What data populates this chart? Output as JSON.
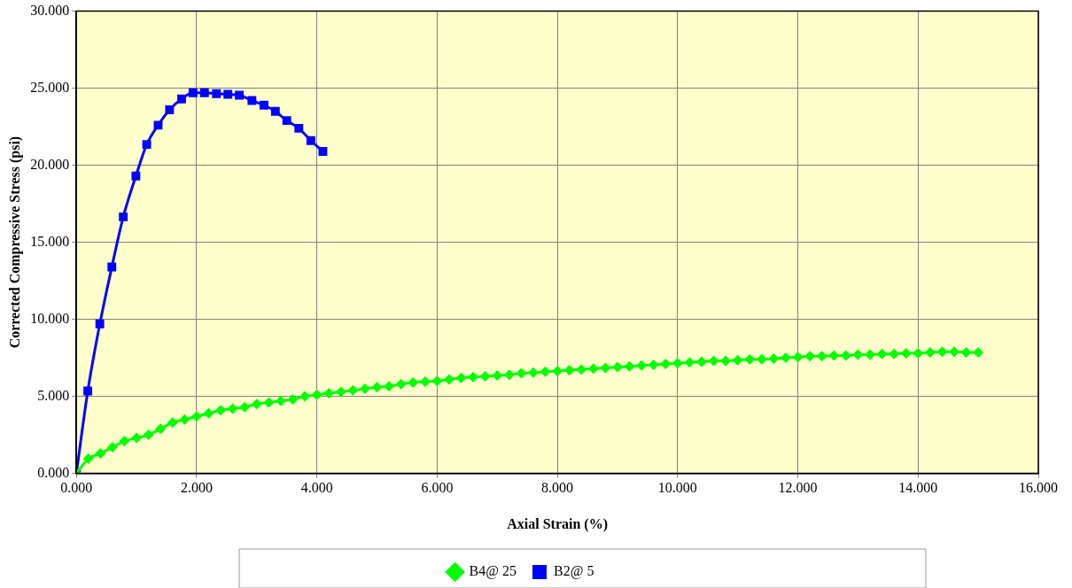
{
  "chart_data": {
    "type": "line",
    "xlabel": "Axial Strain (%)",
    "ylabel": "Corrected Compressive Stress (psi)",
    "xlim": [
      0,
      16
    ],
    "ylim": [
      0,
      30
    ],
    "xticks": [
      {
        "value": 0,
        "label": "0.000"
      },
      {
        "value": 2,
        "label": "2.000"
      },
      {
        "value": 4,
        "label": "4.000"
      },
      {
        "value": 6,
        "label": "6.000"
      },
      {
        "value": 8,
        "label": "8.000"
      },
      {
        "value": 10,
        "label": "10.000"
      },
      {
        "value": 12,
        "label": "12.000"
      },
      {
        "value": 14,
        "label": "14.000"
      },
      {
        "value": 16,
        "label": "16.000"
      }
    ],
    "yticks": [
      {
        "value": 0,
        "label": "0.000"
      },
      {
        "value": 5,
        "label": "5.000"
      },
      {
        "value": 10,
        "label": "10.000"
      },
      {
        "value": 15,
        "label": "15.000"
      },
      {
        "value": 20,
        "label": "20.000"
      },
      {
        "value": 25,
        "label": "25.000"
      },
      {
        "value": 30,
        "label": "30.000"
      }
    ],
    "grid": true,
    "legend": "bottom",
    "line_style": "solid",
    "series": [
      {
        "name": "B4@ 25",
        "color": "#00ff00",
        "marker": "diamond",
        "x": [
          0,
          0.2,
          0.4,
          0.6,
          0.8,
          1.0,
          1.2,
          1.4,
          1.6,
          1.8,
          2.0,
          2.2,
          2.4,
          2.6,
          2.8,
          3.0,
          3.2,
          3.4,
          3.6,
          3.8,
          4.0,
          4.2,
          4.4,
          4.6,
          4.8,
          5.0,
          5.2,
          5.4,
          5.6,
          5.8,
          6.0,
          6.2,
          6.4,
          6.6,
          6.8,
          7.0,
          7.2,
          7.4,
          7.6,
          7.8,
          8.0,
          8.2,
          8.4,
          8.6,
          8.8,
          9.0,
          9.2,
          9.4,
          9.6,
          9.8,
          10.0,
          10.2,
          10.4,
          10.6,
          10.8,
          11.0,
          11.2,
          11.4,
          11.6,
          11.8,
          12.0,
          12.2,
          12.4,
          12.6,
          12.8,
          13.0,
          13.2,
          13.4,
          13.6,
          13.8,
          14.0,
          14.2,
          14.4,
          14.6,
          14.8,
          15.0
        ],
        "values": [
          0,
          0.95,
          1.3,
          1.7,
          2.1,
          2.3,
          2.5,
          2.9,
          3.3,
          3.5,
          3.7,
          3.9,
          4.1,
          4.2,
          4.3,
          4.5,
          4.6,
          4.7,
          4.8,
          5.0,
          5.1,
          5.2,
          5.3,
          5.4,
          5.5,
          5.6,
          5.65,
          5.8,
          5.9,
          5.95,
          6.0,
          6.1,
          6.2,
          6.25,
          6.3,
          6.35,
          6.4,
          6.5,
          6.55,
          6.6,
          6.65,
          6.7,
          6.75,
          6.8,
          6.85,
          6.9,
          6.95,
          7.0,
          7.05,
          7.1,
          7.15,
          7.2,
          7.25,
          7.3,
          7.3,
          7.35,
          7.4,
          7.4,
          7.45,
          7.5,
          7.55,
          7.6,
          7.6,
          7.65,
          7.65,
          7.7,
          7.7,
          7.75,
          7.75,
          7.8,
          7.8,
          7.85,
          7.9,
          7.9,
          7.85,
          7.85
        ]
      },
      {
        "name": "B2@ 5",
        "color": "#0000ff",
        "marker": "square",
        "x": [
          0,
          0.19,
          0.39,
          0.59,
          0.78,
          0.99,
          1.17,
          1.36,
          1.55,
          1.75,
          1.94,
          2.13,
          2.33,
          2.52,
          2.71,
          2.92,
          3.12,
          3.31,
          3.5,
          3.7,
          3.9,
          4.1
        ],
        "values": [
          0,
          5.35,
          9.7,
          13.4,
          16.65,
          19.3,
          21.35,
          22.6,
          23.6,
          24.3,
          24.7,
          24.7,
          24.65,
          24.6,
          24.55,
          24.2,
          23.9,
          23.5,
          22.9,
          22.4,
          21.6,
          20.9
        ]
      }
    ]
  }
}
